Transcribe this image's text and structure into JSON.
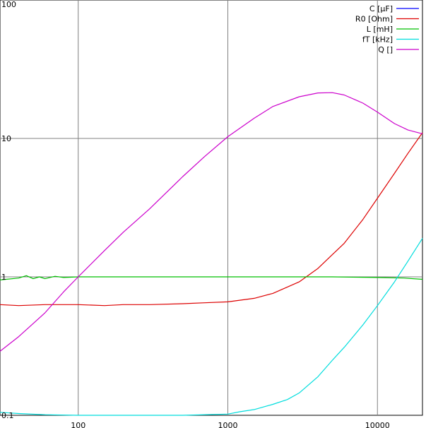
{
  "chart_data": {
    "type": "line",
    "title": "",
    "xlabel": "",
    "ylabel": "",
    "xscale": "log",
    "yscale": "log",
    "xlim": [
      30,
      20000
    ],
    "ylim": [
      0.1,
      100
    ],
    "grid": true,
    "legend_position": "top-right",
    "x_ticks": [
      {
        "value": 100,
        "label": "100"
      },
      {
        "value": 1000,
        "label": "1000"
      },
      {
        "value": 10000,
        "label": "10000"
      }
    ],
    "y_ticks": [
      {
        "value": 100,
        "label": "100"
      },
      {
        "value": 10,
        "label": "10"
      },
      {
        "value": 1,
        "label": "1"
      },
      {
        "value": 0.1,
        "label": "0.1"
      }
    ],
    "series": [
      {
        "name": "C [µF]",
        "color": "#0000ff",
        "x": [],
        "y": []
      },
      {
        "name": "R0 [Ohm]",
        "color": "#dd0000",
        "x": [
          30,
          40,
          60,
          100,
          150,
          200,
          300,
          500,
          700,
          1000,
          1500,
          2000,
          3000,
          4000,
          5000,
          6000,
          8000,
          10000,
          13000,
          16000,
          20000
        ],
        "y": [
          0.63,
          0.62,
          0.63,
          0.63,
          0.62,
          0.63,
          0.63,
          0.64,
          0.65,
          0.66,
          0.7,
          0.76,
          0.92,
          1.15,
          1.45,
          1.75,
          2.6,
          3.7,
          5.6,
          7.8,
          11.0
        ]
      },
      {
        "name": "L [mH]",
        "color": "#00c000",
        "x": [
          30,
          40,
          45,
          50,
          55,
          60,
          70,
          80,
          100,
          200,
          500,
          1000,
          2000,
          5000,
          10000,
          15000,
          20000
        ],
        "y": [
          0.95,
          0.98,
          1.02,
          0.97,
          1.0,
          0.97,
          1.01,
          0.99,
          1.0,
          1.0,
          1.0,
          1.0,
          1.0,
          1.0,
          0.99,
          0.98,
          0.96
        ]
      },
      {
        "name": "fT [kHz]",
        "color": "#00dddd",
        "x": [
          30,
          40,
          60,
          100,
          200,
          500,
          1000,
          1200,
          1500,
          2000,
          2500,
          3000,
          4000,
          5000,
          6000,
          8000,
          10000,
          13000,
          16000,
          20000
        ],
        "y": [
          0.105,
          0.103,
          0.101,
          0.1,
          0.1,
          0.1,
          0.102,
          0.106,
          0.11,
          0.12,
          0.13,
          0.145,
          0.19,
          0.25,
          0.31,
          0.45,
          0.62,
          0.92,
          1.3,
          1.9
        ]
      },
      {
        "name": "Q []",
        "color": "#cc00cc",
        "x": [
          30,
          40,
          50,
          60,
          80,
          100,
          150,
          200,
          300,
          500,
          700,
          1000,
          1500,
          2000,
          3000,
          4000,
          5000,
          6000,
          8000,
          10000,
          13000,
          16000,
          20000
        ],
        "y": [
          0.29,
          0.37,
          0.46,
          0.55,
          0.78,
          1.0,
          1.55,
          2.1,
          3.1,
          5.3,
          7.4,
          10.3,
          14.0,
          17.0,
          20.0,
          21.3,
          21.4,
          20.6,
          18.0,
          15.5,
          12.8,
          11.5,
          10.8
        ]
      }
    ]
  }
}
